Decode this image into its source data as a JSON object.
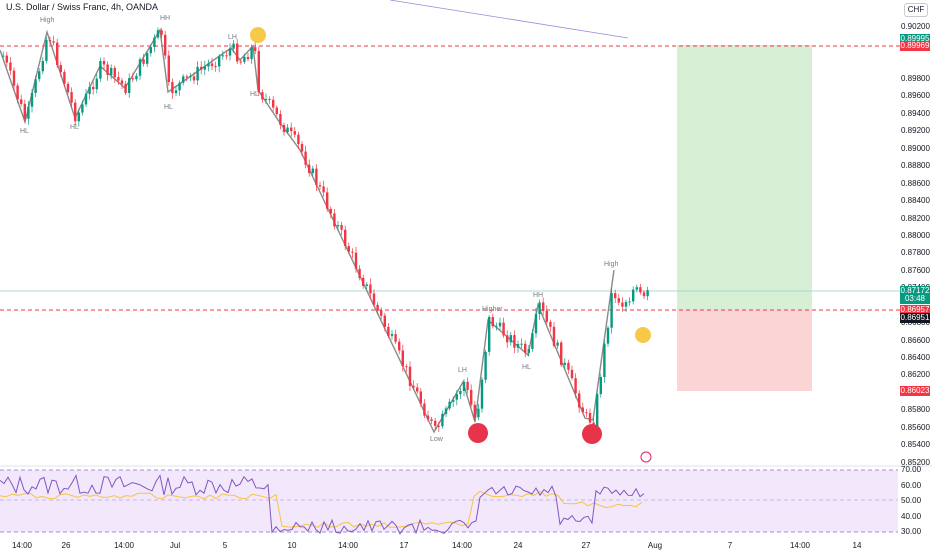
{
  "header": {
    "title": "U.S. Dollar / Swiss Franc, 4h, OANDA",
    "currency": "CHF"
  },
  "price_axis": {
    "ticks": [
      "0.90200",
      "0.90000",
      "0.89800",
      "0.89600",
      "0.89400",
      "0.89200",
      "0.89000",
      "0.88800",
      "0.88600",
      "0.88400",
      "0.88200",
      "0.88000",
      "0.87800",
      "0.87600",
      "0.87400",
      "0.86800",
      "0.86600",
      "0.86400",
      "0.86200",
      "0.86000",
      "0.85800",
      "0.85600",
      "0.85400",
      "0.85200"
    ]
  },
  "price_tags": {
    "target": "0.89995",
    "resistance": "0.89969",
    "last_price": "0.87172",
    "countdown": "03:48",
    "entry": "0.86957",
    "entry_bottom": "0.86951",
    "stop": "0.86023"
  },
  "rsi_axis": {
    "ticks": [
      "70.00",
      "60.00",
      "50.00",
      "40.00",
      "30.00"
    ]
  },
  "time_axis": {
    "ticks": [
      "14:00",
      "26",
      "14:00",
      "Jul",
      "5",
      "10",
      "14:00",
      "17",
      "14:00",
      "24",
      "27",
      "Aug",
      "7",
      "14:00",
      "14"
    ]
  },
  "annotations": {
    "high1": "High",
    "hl1": "HL",
    "hl2": "HL",
    "hh1": "HH",
    "hl3": "HL",
    "lh1": "LH",
    "hl4": "HL",
    "low": "Low",
    "lh2": "LH",
    "higher": "Higher",
    "hh2": "HH",
    "hl5": "HL",
    "high2": "High"
  },
  "colors": {
    "up": "#089981",
    "down": "#f23645",
    "target_zone": "#d7f0d5",
    "stop_zone": "#fbd5d5",
    "rsi_bg": "#f3e7fb",
    "rsi_line": "#7e57c2",
    "rsi_ma": "#f5c542"
  }
}
